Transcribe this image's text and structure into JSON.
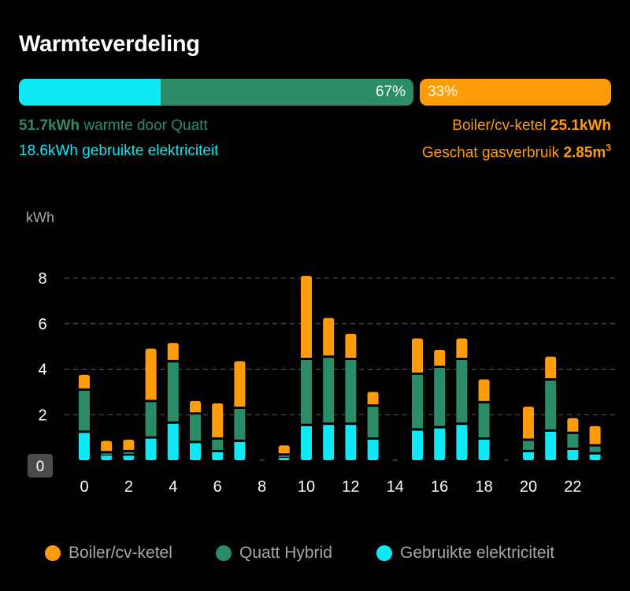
{
  "title": "Warmteverdeling",
  "split": {
    "quatt_percent_label": "67%",
    "boiler_percent_label": "33%",
    "quatt_fraction": 0.67,
    "electricity_fraction_of_quatt": 0.36
  },
  "stats": {
    "quatt_value": "51.7kWh",
    "quatt_label": " warmte door Quatt",
    "electricity_value": "18.6kWh",
    "electricity_label": " gebruikte elektriciteit",
    "boiler_label": "Boiler/cv-ketel ",
    "boiler_value": "25.1kWh",
    "gas_label": "Geschat gasverbruik ",
    "gas_value": "2.85m",
    "gas_unit_sup": "3"
  },
  "colors": {
    "electricity": "#0fe8f5",
    "quatt": "#2b8c68",
    "boiler": "#ff9c0a",
    "background": "#000000"
  },
  "legend": {
    "boiler": "Boiler/cv-ketel",
    "quatt": "Quatt Hybrid",
    "electricity": "Gebruikte elektriciteit"
  },
  "chart_data": {
    "type": "bar",
    "stacked": true,
    "ylabel": "kWh",
    "ylim": [
      0,
      8.5
    ],
    "yticks": [
      0,
      2,
      4,
      6,
      8
    ],
    "xticks": [
      0,
      2,
      4,
      6,
      8,
      10,
      12,
      14,
      16,
      18,
      20,
      22
    ],
    "grid": "horizontal dashed",
    "legend_position": "bottom",
    "categories": [
      0,
      1,
      2,
      3,
      4,
      5,
      6,
      7,
      8,
      9,
      10,
      11,
      12,
      13,
      14,
      15,
      16,
      17,
      18,
      19,
      20,
      21,
      22,
      23
    ],
    "series": [
      {
        "name": "Gebruikte elektriciteit",
        "color": "#0fe8f5",
        "values": [
          1.2,
          0.2,
          0.2,
          0.95,
          1.6,
          0.75,
          0.35,
          0.8,
          0,
          0.1,
          1.5,
          1.55,
          1.55,
          0.9,
          0,
          1.3,
          1.4,
          1.55,
          0.9,
          0,
          0.35,
          1.25,
          0.45,
          0.25
        ]
      },
      {
        "name": "Quatt Hybrid",
        "color": "#2b8c68",
        "values": [
          1.85,
          0.1,
          0.15,
          1.6,
          2.7,
          1.25,
          0.55,
          1.45,
          0,
          0.1,
          2.9,
          2.95,
          2.85,
          1.45,
          0,
          2.45,
          2.65,
          2.85,
          1.6,
          0,
          0.5,
          2.25,
          0.7,
          0.35
        ]
      },
      {
        "name": "Boiler/cv-ketel",
        "color": "#ff9c0a",
        "values": [
          0.7,
          0.55,
          0.55,
          2.35,
          0.85,
          0.6,
          1.6,
          2.1,
          0,
          0.45,
          3.7,
          1.75,
          1.15,
          0.65,
          0,
          1.6,
          0.8,
          0.95,
          1.05,
          0,
          1.5,
          1.05,
          0.7,
          0.9
        ]
      }
    ]
  }
}
